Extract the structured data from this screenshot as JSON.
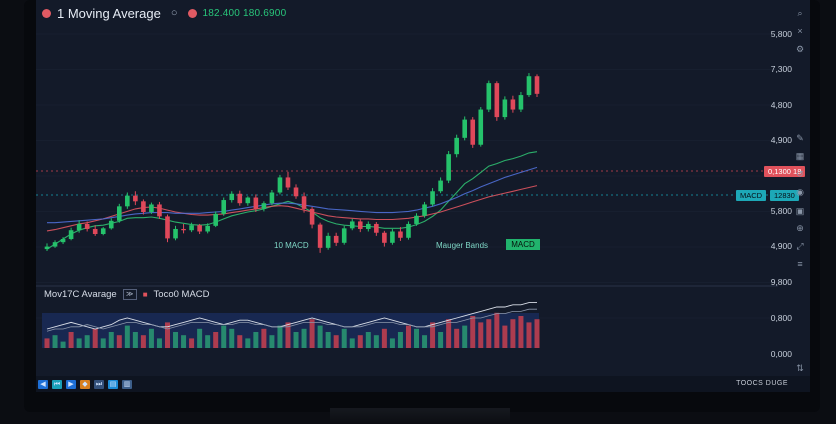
{
  "header": {
    "title": "1 Moving Average",
    "hollow_icon": "circle-outline-icon",
    "price_text": "182.400 180.6900"
  },
  "chart_data": {
    "type": "candlestick",
    "yaxis_labels": [
      "5,800",
      "7,300",
      "4,800",
      "4,900",
      "5,800",
      "4,900",
      "9,800",
      "0,800",
      "0,000"
    ],
    "price_tags": {
      "last_price": "0,1300 18",
      "macd_label": "MACD",
      "macd_value": "12830"
    },
    "annotations": [
      "10 MACD",
      "Mauger Bands",
      "MACD"
    ],
    "candles": [
      {
        "o": 34.6,
        "h": 35.5,
        "l": 34.3,
        "c": 35.0
      },
      {
        "o": 35.0,
        "h": 36.0,
        "l": 34.8,
        "c": 35.7
      },
      {
        "o": 35.7,
        "h": 36.5,
        "l": 35.4,
        "c": 36.2
      },
      {
        "o": 36.2,
        "h": 38.0,
        "l": 36.0,
        "c": 37.6
      },
      {
        "o": 37.6,
        "h": 39.2,
        "l": 37.2,
        "c": 38.6
      },
      {
        "o": 38.6,
        "h": 39.0,
        "l": 37.4,
        "c": 37.8
      },
      {
        "o": 37.8,
        "h": 38.4,
        "l": 36.7,
        "c": 37.0
      },
      {
        "o": 37.0,
        "h": 38.1,
        "l": 36.8,
        "c": 37.9
      },
      {
        "o": 37.9,
        "h": 39.5,
        "l": 37.7,
        "c": 39.1
      },
      {
        "o": 39.1,
        "h": 41.8,
        "l": 38.8,
        "c": 41.4
      },
      {
        "o": 41.4,
        "h": 43.6,
        "l": 41.0,
        "c": 43.1
      },
      {
        "o": 43.1,
        "h": 43.8,
        "l": 41.6,
        "c": 42.2
      },
      {
        "o": 42.2,
        "h": 42.5,
        "l": 40.1,
        "c": 40.5
      },
      {
        "o": 40.5,
        "h": 42.0,
        "l": 40.2,
        "c": 41.7
      },
      {
        "o": 41.7,
        "h": 42.1,
        "l": 39.4,
        "c": 39.8
      },
      {
        "o": 39.8,
        "h": 40.1,
        "l": 35.7,
        "c": 36.3
      },
      {
        "o": 36.3,
        "h": 38.3,
        "l": 36.0,
        "c": 37.8
      },
      {
        "o": 37.8,
        "h": 38.6,
        "l": 37.1,
        "c": 37.6
      },
      {
        "o": 37.6,
        "h": 38.8,
        "l": 37.3,
        "c": 38.4
      },
      {
        "o": 38.4,
        "h": 38.6,
        "l": 37.0,
        "c": 37.4
      },
      {
        "o": 37.4,
        "h": 38.7,
        "l": 37.1,
        "c": 38.3
      },
      {
        "o": 38.3,
        "h": 40.6,
        "l": 38.1,
        "c": 40.2
      },
      {
        "o": 40.2,
        "h": 42.8,
        "l": 39.9,
        "c": 42.4
      },
      {
        "o": 42.4,
        "h": 43.8,
        "l": 42.0,
        "c": 43.4
      },
      {
        "o": 43.4,
        "h": 43.9,
        "l": 41.5,
        "c": 41.9
      },
      {
        "o": 41.9,
        "h": 43.0,
        "l": 41.5,
        "c": 42.8
      },
      {
        "o": 42.8,
        "h": 43.3,
        "l": 40.5,
        "c": 41.0
      },
      {
        "o": 41.0,
        "h": 42.2,
        "l": 40.6,
        "c": 41.9
      },
      {
        "o": 41.9,
        "h": 44.0,
        "l": 41.6,
        "c": 43.6
      },
      {
        "o": 43.6,
        "h": 46.4,
        "l": 43.3,
        "c": 46.0
      },
      {
        "o": 46.0,
        "h": 46.9,
        "l": 44.0,
        "c": 44.4
      },
      {
        "o": 44.4,
        "h": 44.9,
        "l": 42.6,
        "c": 43.0
      },
      {
        "o": 43.0,
        "h": 43.6,
        "l": 40.4,
        "c": 41.0
      },
      {
        "o": 41.0,
        "h": 41.3,
        "l": 37.9,
        "c": 38.5
      },
      {
        "o": 38.5,
        "h": 38.8,
        "l": 34.0,
        "c": 34.8
      },
      {
        "o": 34.8,
        "h": 37.2,
        "l": 34.5,
        "c": 36.7
      },
      {
        "o": 36.7,
        "h": 37.2,
        "l": 35.1,
        "c": 35.6
      },
      {
        "o": 35.6,
        "h": 38.3,
        "l": 35.3,
        "c": 37.9
      },
      {
        "o": 37.9,
        "h": 39.4,
        "l": 37.6,
        "c": 39.0
      },
      {
        "o": 39.0,
        "h": 39.3,
        "l": 37.3,
        "c": 37.8
      },
      {
        "o": 37.8,
        "h": 39.0,
        "l": 37.4,
        "c": 38.6
      },
      {
        "o": 38.6,
        "h": 38.9,
        "l": 36.7,
        "c": 37.2
      },
      {
        "o": 37.2,
        "h": 37.5,
        "l": 35.0,
        "c": 35.6
      },
      {
        "o": 35.6,
        "h": 37.8,
        "l": 35.3,
        "c": 37.4
      },
      {
        "o": 37.4,
        "h": 38.1,
        "l": 35.9,
        "c": 36.4
      },
      {
        "o": 36.4,
        "h": 39.0,
        "l": 36.1,
        "c": 38.6
      },
      {
        "o": 38.6,
        "h": 40.3,
        "l": 38.3,
        "c": 39.9
      },
      {
        "o": 39.9,
        "h": 42.1,
        "l": 39.6,
        "c": 41.7
      },
      {
        "o": 41.7,
        "h": 44.3,
        "l": 41.4,
        "c": 43.8
      },
      {
        "o": 43.8,
        "h": 46.0,
        "l": 43.5,
        "c": 45.5
      },
      {
        "o": 45.5,
        "h": 50.2,
        "l": 45.1,
        "c": 49.7
      },
      {
        "o": 49.7,
        "h": 52.8,
        "l": 49.2,
        "c": 52.3
      },
      {
        "o": 52.3,
        "h": 55.7,
        "l": 51.9,
        "c": 55.2
      },
      {
        "o": 55.2,
        "h": 55.6,
        "l": 50.7,
        "c": 51.2
      },
      {
        "o": 51.2,
        "h": 57.2,
        "l": 50.9,
        "c": 56.8
      },
      {
        "o": 56.8,
        "h": 61.4,
        "l": 56.4,
        "c": 61.0
      },
      {
        "o": 61.0,
        "h": 61.3,
        "l": 55.0,
        "c": 55.6
      },
      {
        "o": 55.6,
        "h": 58.9,
        "l": 55.2,
        "c": 58.4
      },
      {
        "o": 58.4,
        "h": 59.0,
        "l": 56.3,
        "c": 56.8
      },
      {
        "o": 56.8,
        "h": 59.6,
        "l": 56.4,
        "c": 59.1
      },
      {
        "o": 59.1,
        "h": 62.6,
        "l": 58.8,
        "c": 62.1
      },
      {
        "o": 62.1,
        "h": 62.4,
        "l": 58.8,
        "c": 59.3
      }
    ],
    "ma_lines": [
      {
        "color": "#2fbf71",
        "values": [
          34.6,
          35.4,
          36.2,
          37.0,
          37.6,
          38.0,
          38.3,
          38.4,
          38.7,
          39.0,
          39.5,
          39.6,
          39.6,
          39.7,
          39.5,
          39.2,
          38.9,
          38.7,
          38.5,
          38.4,
          38.5,
          38.9,
          39.4,
          39.9,
          40.2,
          40.5,
          40.7,
          41.0,
          41.4,
          41.8,
          42.2,
          41.8,
          41.2,
          40.5,
          39.6,
          39.0,
          38.6,
          38.4,
          38.3,
          38.2,
          38.2,
          38.1,
          37.9,
          37.9,
          37.9,
          38.1,
          38.5,
          39.0,
          39.8,
          40.8,
          42.2,
          43.6,
          45.0,
          45.8,
          46.8,
          47.8,
          48.2,
          48.7,
          49.0,
          49.4,
          49.9,
          50.1
        ]
      },
      {
        "color": "#e05560",
        "values": [
          37.5,
          37.7,
          38.0,
          38.3,
          38.6,
          38.8,
          39.1,
          39.4,
          39.8,
          40.2,
          40.6,
          41.0,
          41.2,
          41.3,
          41.1,
          40.8,
          40.5,
          40.3,
          40.1,
          40.0,
          40.0,
          40.1,
          40.2,
          40.4,
          40.6,
          40.8,
          41.0,
          41.2,
          41.4,
          41.5,
          41.4,
          41.1,
          40.8,
          40.5,
          40.2,
          39.9,
          39.7,
          39.6,
          39.5,
          39.4,
          39.4,
          39.3,
          39.3,
          39.3,
          39.4,
          39.5,
          39.7,
          39.9,
          40.2,
          40.5,
          40.9,
          41.3,
          41.7,
          42.1,
          42.5,
          42.9,
          43.2,
          43.5,
          43.8,
          44.1,
          44.4,
          44.7
        ]
      },
      {
        "color": "#4f6fd6",
        "values": [
          38.8,
          38.8,
          38.9,
          39.0,
          39.1,
          39.2,
          39.3,
          39.4,
          39.6,
          39.8,
          40.0,
          40.2,
          40.3,
          40.4,
          40.4,
          40.4,
          40.3,
          40.3,
          40.3,
          40.3,
          40.4,
          40.5,
          40.6,
          40.8,
          41.0,
          41.2,
          41.4,
          41.6,
          41.8,
          41.9,
          41.9,
          41.8,
          41.6,
          41.4,
          41.2,
          41.0,
          40.9,
          40.8,
          40.7,
          40.6,
          40.5,
          40.4,
          40.4,
          40.4,
          40.5,
          40.6,
          40.8,
          41.1,
          41.4,
          41.8,
          42.3,
          42.8,
          43.4,
          43.9,
          44.5,
          45.0,
          45.5,
          46.0,
          46.4,
          46.8,
          47.2,
          47.6
        ]
      }
    ],
    "subpanel": {
      "volume": [
        3,
        4,
        2,
        5,
        3,
        4,
        6,
        3,
        5,
        4,
        7,
        5,
        4,
        6,
        3,
        8,
        5,
        4,
        3,
        6,
        4,
        5,
        7,
        6,
        4,
        3,
        5,
        6,
        4,
        7,
        8,
        5,
        6,
        9,
        7,
        5,
        4,
        6,
        3,
        4,
        5,
        4,
        6,
        3,
        5,
        7,
        6,
        4,
        8,
        5,
        9,
        6,
        7,
        10,
        8,
        9,
        11,
        7,
        9,
        10,
        8,
        9
      ],
      "line1": [
        5,
        6,
        7,
        8,
        7,
        6,
        5,
        6,
        7,
        9,
        10,
        9,
        8,
        7,
        6,
        6,
        7,
        8,
        9,
        10,
        9,
        8,
        7,
        8,
        9,
        9,
        8,
        7,
        6,
        6,
        7,
        8,
        9,
        10,
        9,
        8,
        7,
        6,
        6,
        7,
        8,
        9,
        10,
        9,
        8,
        7,
        6,
        6,
        7,
        8,
        9,
        10,
        11,
        12,
        13,
        14,
        15,
        15,
        16,
        16,
        17,
        17
      ],
      "line2": [
        4,
        5,
        5,
        6,
        6,
        7,
        6,
        5,
        6,
        7,
        8,
        8,
        7,
        7,
        6,
        5,
        6,
        7,
        8,
        8,
        8,
        7,
        7,
        7,
        8,
        8,
        7,
        7,
        6,
        6,
        6,
        7,
        8,
        8,
        8,
        7,
        7,
        6,
        6,
        6,
        7,
        8,
        8,
        8,
        7,
        7,
        6,
        6,
        6,
        7,
        8,
        8,
        9,
        10,
        10,
        11,
        12,
        12,
        13,
        13,
        14,
        14
      ]
    }
  },
  "sub_legend": {
    "name": "Mov17C Avarage",
    "button_text": "≫",
    "macd_text": "Toco0 MACD"
  },
  "footer": {
    "right_text": "TOOCS DUGE"
  }
}
